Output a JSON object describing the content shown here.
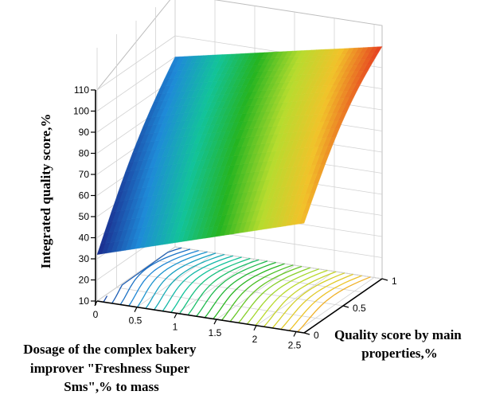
{
  "chart_data": {
    "type": "surface3d",
    "title": "",
    "xlabel_lines": [
      "Dosage of the complex bakery",
      "improver \"Freshness Super",
      "Sms\",% to mass"
    ],
    "ylabel_lines": [
      "Quality score by main",
      "properties,%"
    ],
    "zlabel": "Integrated quality score,%",
    "x_ticks": [
      "0",
      "0.5",
      "1",
      "1.5",
      "2",
      "2.5"
    ],
    "y_ticks": [
      "0",
      "0.5",
      "1"
    ],
    "z_ticks": [
      "10",
      "20",
      "30",
      "40",
      "50",
      "60",
      "70",
      "80",
      "90",
      "100",
      "110"
    ],
    "xlim": [
      0,
      2.6
    ],
    "ylim": [
      0,
      1
    ],
    "zlim": [
      10,
      110
    ],
    "colormap": [
      "#1a2a8c",
      "#1e8ad8",
      "#12c39a",
      "#25b420",
      "#b6dc2e",
      "#f2c22a",
      "#e53a1f"
    ],
    "grid": true,
    "contour_projection": true,
    "surface_corners": [
      {
        "x": 0,
        "y": 0,
        "z": 32
      },
      {
        "x": 0,
        "y": 1,
        "z": 100
      },
      {
        "x": 2.6,
        "y": 0,
        "z": 62
      },
      {
        "x": 2.6,
        "y": 1,
        "z": 120
      }
    ]
  }
}
